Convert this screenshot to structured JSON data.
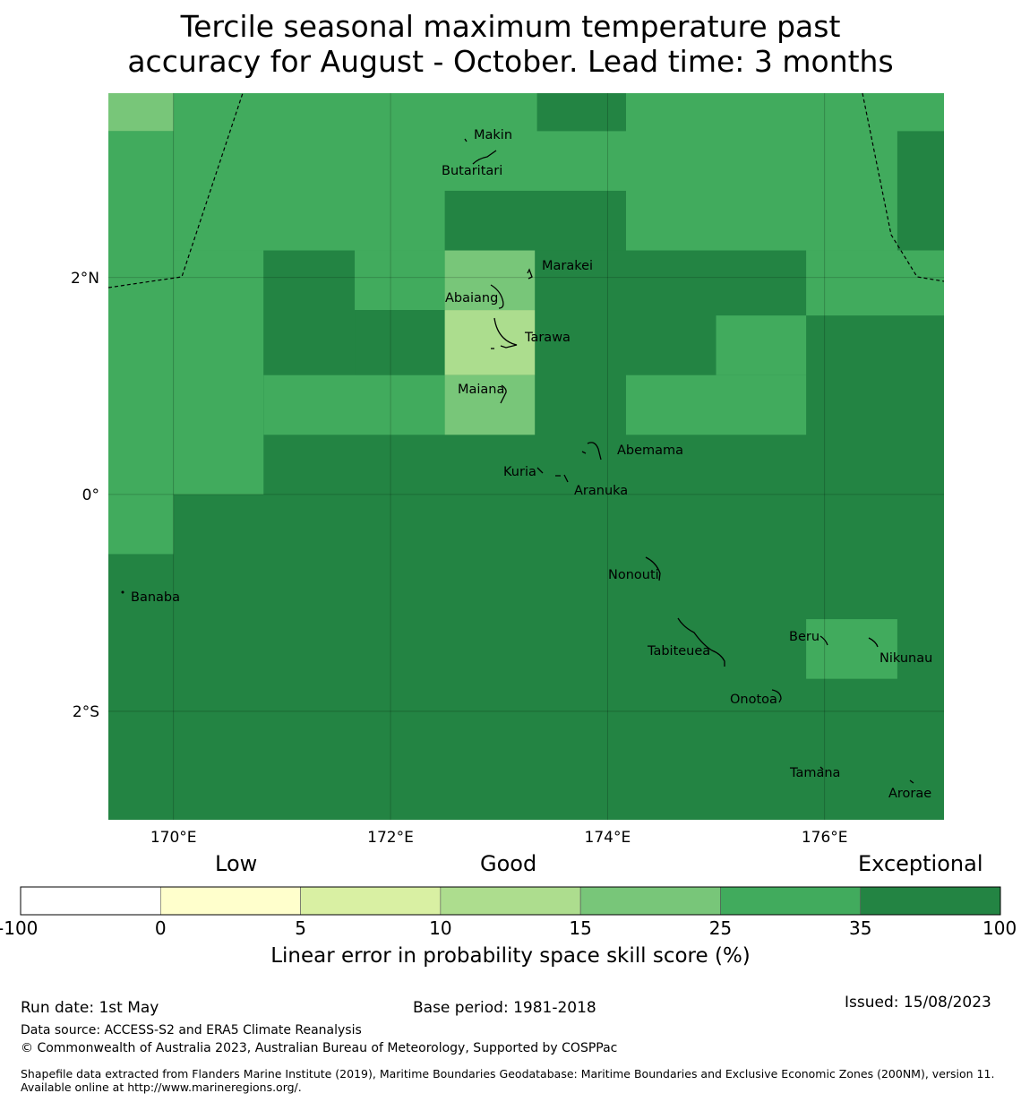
{
  "title_line1": "Tercile seasonal maximum temperature past",
  "title_line2": "accuracy for August - October. Lead time: 3 months",
  "map": {
    "lon_range": [
      169.4,
      177.1
    ],
    "lat_range": [
      -3.0,
      3.7
    ],
    "lon_ticks": [
      {
        "value": 170,
        "label": "170°E"
      },
      {
        "value": 172,
        "label": "172°E"
      },
      {
        "value": 174,
        "label": "174°E"
      },
      {
        "value": 176,
        "label": "176°E"
      }
    ],
    "lat_ticks": [
      {
        "value": 2,
        "label": "2°N"
      },
      {
        "value": 0,
        "label": "0°"
      },
      {
        "value": -2,
        "label": "2°S"
      }
    ],
    "category_colors": {
      "c10_15": "#acdd8e",
      "c15_25": "#78c679",
      "c25_35": "#41ab5d",
      "c35_100": "#238443"
    },
    "background_category": "c35_100",
    "cells": [
      {
        "lon": [
          169.4,
          170.0
        ],
        "lat": [
          3.35,
          3.7
        ],
        "cat": "c15_25"
      },
      {
        "lon": [
          169.4,
          170.0
        ],
        "lat": [
          -0.55,
          3.35
        ],
        "cat": "c25_35"
      },
      {
        "lon": [
          170.0,
          177.1
        ],
        "lat": [
          2.25,
          3.7
        ],
        "cat": "c25_35"
      },
      {
        "lon": [
          173.35,
          174.17
        ],
        "lat": [
          3.35,
          3.7
        ],
        "cat": "c35_100"
      },
      {
        "lon": [
          172.5,
          174.17
        ],
        "lat": [
          2.25,
          2.8
        ],
        "cat": "c35_100"
      },
      {
        "lon": [
          176.67,
          177.1
        ],
        "lat": [
          2.25,
          3.35
        ],
        "cat": "c35_100"
      },
      {
        "lon": [
          170.0,
          170.83
        ],
        "lat": [
          0.0,
          2.25
        ],
        "cat": "c25_35"
      },
      {
        "lon": [
          170.83,
          171.67
        ],
        "lat": [
          0.55,
          2.25
        ],
        "cat": "c35_100"
      },
      {
        "lon": [
          171.67,
          172.5
        ],
        "lat": [
          1.7,
          2.25
        ],
        "cat": "c25_35"
      },
      {
        "lon": [
          171.67,
          172.5
        ],
        "lat": [
          1.1,
          1.7
        ],
        "cat": "c35_100"
      },
      {
        "lon": [
          170.83,
          172.5
        ],
        "lat": [
          0.55,
          1.1
        ],
        "cat": "c25_35"
      },
      {
        "lon": [
          172.5,
          173.33
        ],
        "lat": [
          1.7,
          2.25
        ],
        "cat": "c15_25"
      },
      {
        "lon": [
          172.5,
          173.33
        ],
        "lat": [
          1.1,
          1.7
        ],
        "cat": "c10_15"
      },
      {
        "lon": [
          172.5,
          173.33
        ],
        "lat": [
          0.55,
          1.1
        ],
        "cat": "c15_25"
      },
      {
        "lon": [
          174.17,
          175.83
        ],
        "lat": [
          0.55,
          1.1
        ],
        "cat": "c25_35"
      },
      {
        "lon": [
          175.0,
          175.83
        ],
        "lat": [
          1.1,
          1.65
        ],
        "cat": "c25_35"
      },
      {
        "lon": [
          175.83,
          177.1
        ],
        "lat": [
          1.65,
          2.25
        ],
        "cat": "c25_35"
      },
      {
        "lon": [
          175.83,
          176.67
        ],
        "lat": [
          -1.7,
          -1.15
        ],
        "cat": "c25_35"
      }
    ],
    "islands": [
      {
        "name": "Makin",
        "label": "Makin",
        "lon": 173.0,
        "lat": 3.35
      },
      {
        "name": "Butaritari",
        "label": "Butaritari",
        "lon": 172.8,
        "lat": 3.05
      },
      {
        "name": "Marakei",
        "label": "Marakei",
        "lon": 173.45,
        "lat": 2.1
      },
      {
        "name": "Abaiang",
        "label": "Abaiang",
        "lon": 172.7,
        "lat": 1.85
      },
      {
        "name": "Tarawa",
        "label": "Tarawa",
        "lon": 173.3,
        "lat": 1.45
      },
      {
        "name": "Maiana",
        "label": "Maiana",
        "lon": 172.7,
        "lat": 0.97
      },
      {
        "name": "Abemama",
        "label": "Abemama",
        "lon": 174.1,
        "lat": 0.39
      },
      {
        "name": "Kuria",
        "label": "Kuria",
        "lon": 172.85,
        "lat": 0.22
      },
      {
        "name": "Aranuka",
        "label": "Aranuka",
        "lon": 173.6,
        "lat": 0.05
      },
      {
        "name": "Nonouti",
        "label": "Nonouti",
        "lon": 174.0,
        "lat": -0.75
      },
      {
        "name": "Banaba",
        "label": "Banaba",
        "lon": 169.55,
        "lat": -0.95
      },
      {
        "name": "Tabiteuea",
        "label": "Tabiteuea",
        "lon": 174.45,
        "lat": -1.45
      },
      {
        "name": "Beru",
        "label": "Beru",
        "lon": 175.8,
        "lat": -1.3
      },
      {
        "name": "Nikunau",
        "label": "Nikunau",
        "lon": 176.5,
        "lat": -1.5
      },
      {
        "name": "Onotoa",
        "label": "Onotoa",
        "lon": 175.1,
        "lat": -1.95
      },
      {
        "name": "Tamana",
        "label": "Tamana",
        "lon": 175.8,
        "lat": -2.6
      },
      {
        "name": "Arorae",
        "label": "Arorae",
        "lon": 176.6,
        "lat": -2.8
      }
    ]
  },
  "colorbar": {
    "head_low": "Low",
    "head_good": "Good",
    "head_exceptional": "Exceptional",
    "ticks": [
      "-100",
      "0",
      "5",
      "10",
      "15",
      "25",
      "35",
      "100"
    ],
    "colors": [
      "#ffffff",
      "#ffffcc",
      "#d9f0a3",
      "#addd8e",
      "#78c679",
      "#41ab5d",
      "#238443"
    ],
    "label": "Linear error in probability space skill score (%)"
  },
  "footer": {
    "run_date": "Run date: 1st May",
    "base_period": "Base period: 1981-2018",
    "issued": "Issued: 15/08/2023",
    "data_source": "Data source: ACCESS-S2 and ERA5 Climate Reanalysis",
    "copyright": "© Commonwealth of Australia 2023, Australian Bureau of Meteorology, Supported by COSPPac",
    "shapefile": "Shapefile data extracted from Flanders Marine Institute (2019), Maritime Boundaries Geodatabase: Maritime Boundaries and Exclusive Economic Zones (200NM), version 11. Available online at http://www.marineregions.org/."
  }
}
